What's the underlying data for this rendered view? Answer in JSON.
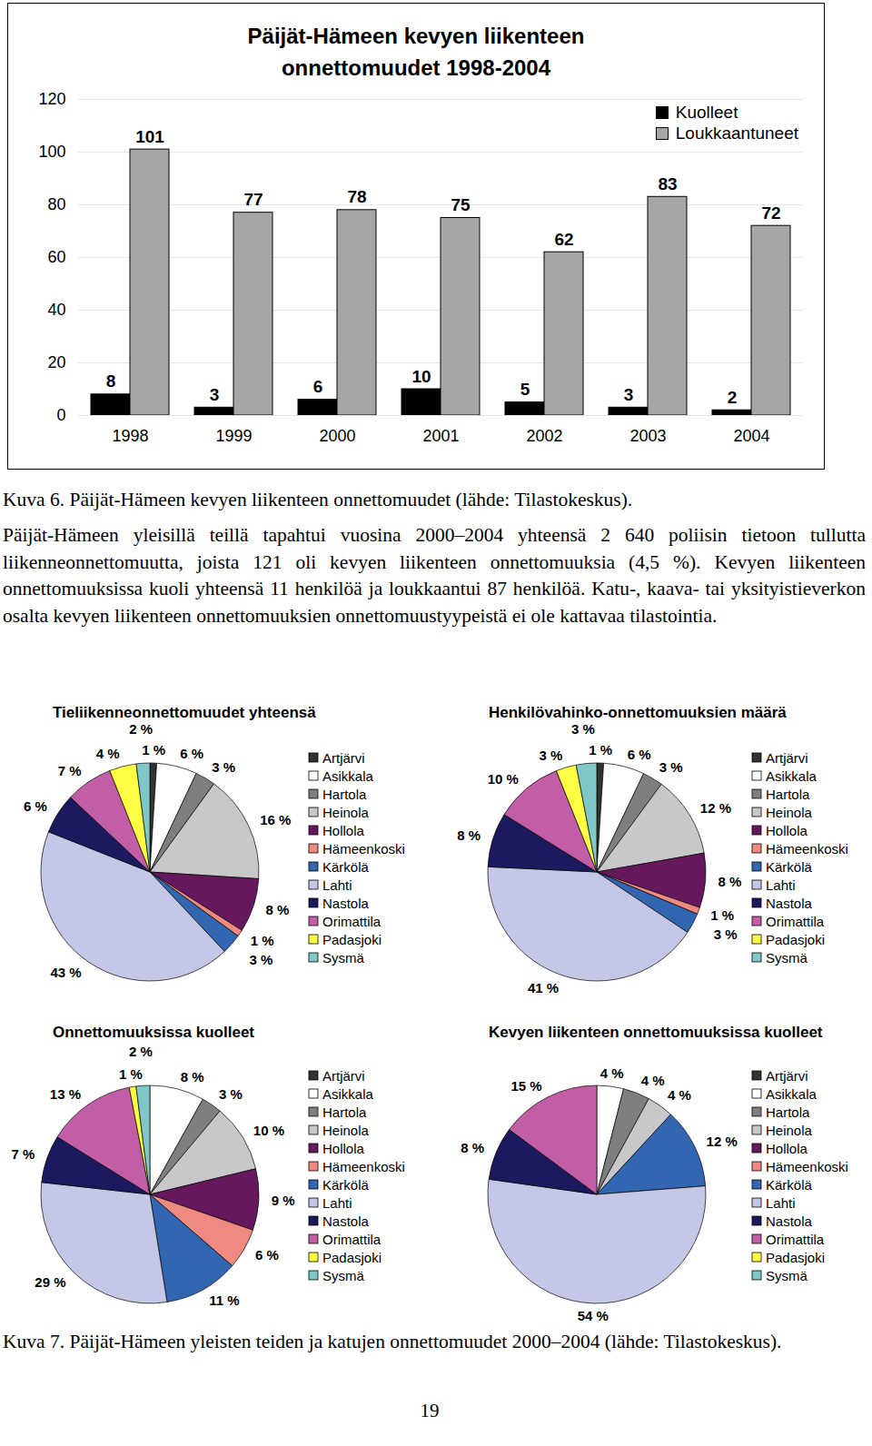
{
  "chart_data": [
    {
      "type": "bar",
      "title": "Päijät-Hämeen kevyen liikenteen onnettomuudet 1998-2004",
      "categories": [
        "1998",
        "1999",
        "2000",
        "2001",
        "2002",
        "2003",
        "2004"
      ],
      "series": [
        {
          "name": "Kuolleet",
          "color": "#000000",
          "values": [
            8,
            3,
            6,
            10,
            5,
            3,
            2
          ]
        },
        {
          "name": "Loukkaantuneet",
          "color": "#a6a6a6",
          "values": [
            101,
            77,
            78,
            75,
            62,
            83,
            72
          ]
        }
      ],
      "ylim": [
        0,
        120
      ],
      "yticks": [
        0,
        20,
        40,
        60,
        80,
        100,
        120
      ],
      "grid": true,
      "legend": "top-right",
      "data_labels": true
    },
    {
      "type": "pie",
      "title": "Tieliikenneonnettomuudet yhteensä",
      "categories": [
        "Artjärvi",
        "Asikkala",
        "Hartola",
        "Heinola",
        "Hollola",
        "Hämeenkoski",
        "Kärkölä",
        "Lahti",
        "Nastola",
        "Orimattila",
        "Padasjoki",
        "Sysmä"
      ],
      "colors": [
        "#333333",
        "#ffffff",
        "#7f7f7f",
        "#c8c8c8",
        "#66185e",
        "#f08a80",
        "#3366b0",
        "#c4c8e6",
        "#1c1a5e",
        "#c25ea6",
        "#ffff44",
        "#80c8c8"
      ],
      "values": [
        1,
        6,
        3,
        16,
        8,
        1,
        3,
        43,
        6,
        7,
        4,
        2
      ],
      "value_labels": [
        "1 %",
        "6 %",
        "3 %",
        "16 %",
        "8 %",
        "1 %",
        "3 %",
        "43 %",
        "6 %",
        "7 %",
        "4 %",
        "2 %"
      ]
    },
    {
      "type": "pie",
      "title": "Henkilövahinko-onnettomuuksien määrä",
      "categories": [
        "Artjärvi",
        "Asikkala",
        "Hartola",
        "Heinola",
        "Hollola",
        "Hämeenkoski",
        "Kärkölä",
        "Lahti",
        "Nastola",
        "Orimattila",
        "Padasjoki",
        "Sysmä"
      ],
      "colors": [
        "#333333",
        "#ffffff",
        "#7f7f7f",
        "#c8c8c8",
        "#66185e",
        "#f08a80",
        "#3366b0",
        "#c4c8e6",
        "#1c1a5e",
        "#c25ea6",
        "#ffff44",
        "#80c8c8"
      ],
      "values": [
        1,
        6,
        3,
        12,
        8,
        1,
        3,
        41,
        8,
        10,
        3,
        3
      ],
      "value_labels": [
        "1 %",
        "6 %",
        "3 %",
        "12 %",
        "8 %",
        "1 %",
        "3 %",
        "41 %",
        "8 %",
        "10 %",
        "3 %",
        "3 %"
      ]
    },
    {
      "type": "pie",
      "title": "Onnettomuuksissa kuolleet",
      "categories": [
        "Artjärvi",
        "Asikkala",
        "Hartola",
        "Heinola",
        "Hollola",
        "Hämeenkoski",
        "Kärkölä",
        "Lahti",
        "Nastola",
        "Orimattila",
        "Padasjoki",
        "Sysmä"
      ],
      "colors": [
        "#333333",
        "#ffffff",
        "#7f7f7f",
        "#c8c8c8",
        "#66185e",
        "#f08a80",
        "#3366b0",
        "#c4c8e6",
        "#1c1a5e",
        "#c25ea6",
        "#ffff44",
        "#80c8c8"
      ],
      "values": [
        null,
        8,
        3,
        10,
        9,
        6,
        11,
        29,
        7,
        13,
        1,
        2
      ],
      "value_labels": [
        null,
        "8 %",
        "3 %",
        "10 %",
        "9 %",
        "6 %",
        "11 %",
        "29 %",
        "7 %",
        "13 %",
        "1 %",
        "2 %"
      ]
    },
    {
      "type": "pie",
      "title": "Kevyen liikenteen onnettomuuksissa kuolleet",
      "categories": [
        "Artjärvi",
        "Asikkala",
        "Hartola",
        "Heinola",
        "Hollola",
        "Hämeenkoski",
        "Kärkölä",
        "Lahti",
        "Nastola",
        "Orimattila",
        "Padasjoki",
        "Sysmä"
      ],
      "colors": [
        "#333333",
        "#ffffff",
        "#7f7f7f",
        "#c8c8c8",
        "#66185e",
        "#f08a80",
        "#3366b0",
        "#c4c8e6",
        "#1c1a5e",
        "#c25ea6",
        "#ffff44",
        "#80c8c8"
      ],
      "values": [
        null,
        4,
        4,
        4,
        null,
        null,
        12,
        54,
        8,
        15,
        null,
        null
      ],
      "value_labels": [
        null,
        "4 %",
        "4 %",
        "4 %",
        null,
        null,
        "12 %",
        "54 %",
        "8 %",
        "15 %",
        null,
        null
      ]
    }
  ],
  "captions": [
    "Kuva 6. Päijät-Hämeen kevyen liikenteen onnettomuudet (lähde: Tilastokeskus).",
    "Kuva 7. Päijät-Hämeen yleisten teiden ja katujen onnettomuudet 2000–2004 (lähde: Tilastokeskus)."
  ],
  "paragraph": "Päijät-Hämeen yleisillä teillä tapahtui vuosina 2000–2004 yhteensä 2 640 poliisin tietoon tullutta liikenneonnettomuutta, joista 121 oli kevyen liikenteen onnettomuuksia (4,5 %). Kevyen liikenteen onnettomuuksissa kuoli yhteensä 11 henkilöä ja loukkaantui 87 henkilöä. Katu-, kaava- tai yksityistieverkon osalta kevyen liikenteen onnettomuuksien onnettomuustyypeistä ei ole kattavaa tilastointia.",
  "page_number": "19"
}
